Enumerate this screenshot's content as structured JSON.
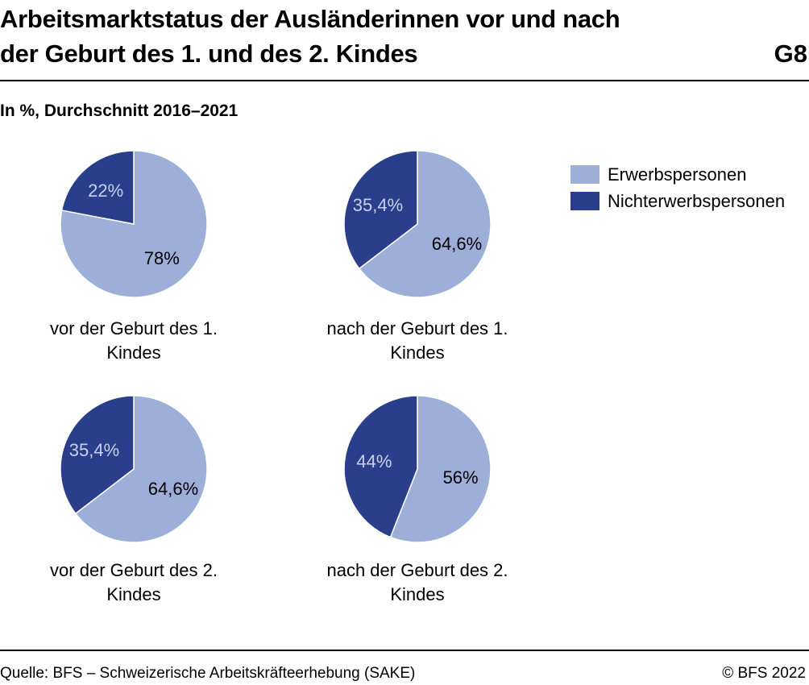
{
  "header": {
    "title_line1": "Arbeitsmarktstatus der Ausländerinnen vor und nach",
    "title_line2": "der Geburt des 1. und des 2. Kindes",
    "figure_id": "G8",
    "subtitle": "In %, Durchschnitt 2016–2021"
  },
  "legend": {
    "items": [
      {
        "label": "Erwerbspersonen",
        "color": "#9daed9"
      },
      {
        "label": "Nichterwerbspersonen",
        "color": "#2b3e8c"
      }
    ]
  },
  "chart_data": [
    {
      "type": "pie",
      "caption": [
        "vor der Geburt des 1.",
        "Kindes"
      ],
      "slices": [
        {
          "name": "Erwerbspersonen",
          "value": 78,
          "label": "78%",
          "color": "#9daed9"
        },
        {
          "name": "Nichterwerbspersonen",
          "value": 22,
          "label": "22%",
          "color": "#2b3e8c"
        }
      ]
    },
    {
      "type": "pie",
      "caption": [
        "nach der Geburt des 1.",
        "Kindes"
      ],
      "slices": [
        {
          "name": "Erwerbspersonen",
          "value": 64.6,
          "label": "64,6%",
          "color": "#9daed9"
        },
        {
          "name": "Nichterwerbspersonen",
          "value": 35.4,
          "label": "35,4%",
          "color": "#2b3e8c"
        }
      ]
    },
    {
      "type": "pie",
      "caption": [
        "vor der Geburt des 2.",
        "Kindes"
      ],
      "slices": [
        {
          "name": "Erwerbspersonen",
          "value": 64.6,
          "label": "64,6%",
          "color": "#9daed9"
        },
        {
          "name": "Nichterwerbspersonen",
          "value": 35.4,
          "label": "35,4%",
          "color": "#2b3e8c"
        }
      ]
    },
    {
      "type": "pie",
      "caption": [
        "nach der Geburt des 2.",
        "Kindes"
      ],
      "slices": [
        {
          "name": "Erwerbspersonen",
          "value": 56,
          "label": "56%",
          "color": "#9daed9"
        },
        {
          "name": "Nichterwerbspersonen",
          "value": 44,
          "label": "44%",
          "color": "#2b3e8c"
        }
      ]
    }
  ],
  "footer": {
    "source": "Quelle: BFS – Schweizerische Arbeitskräfteerhebung (SAKE)",
    "copyright": "© BFS 2022"
  }
}
